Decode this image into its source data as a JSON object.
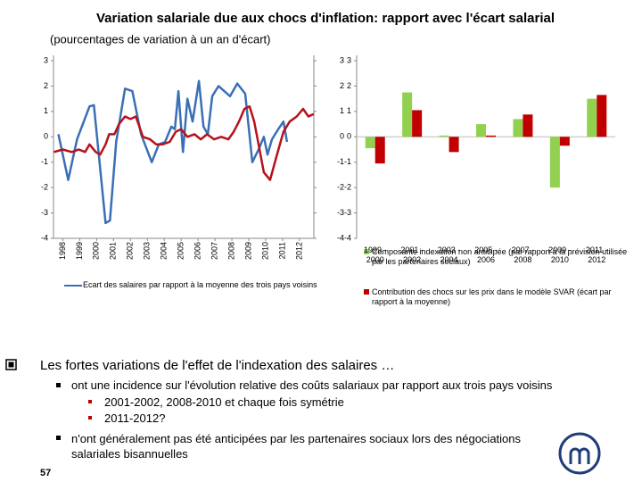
{
  "title": "Variation salariale due aux chocs d'inflation: rapport avec l'écart salarial",
  "subtitle": "(pourcentages de variation à un an d'écart)",
  "bullets": [
    {
      "text": "Les fortes variations de l'effet de l'indexation des salaires …",
      "items": [
        {
          "text": "ont une incidence sur l'évolution relative des coûts salariaux par rapport aux trois pays voisins",
          "items": [
            "2001-2002, 2008-2010 et chaque fois symétrie",
            "2011-2012?"
          ]
        },
        {
          "text": "n'ont généralement pas été anticipées par les partenaires sociaux lors des négociations salariales bisannuelles"
        }
      ]
    }
  ],
  "page_number": 57,
  "chart_data": [
    {
      "type": "line",
      "xlim": [
        1997.45,
        2012.85
      ],
      "xticks": [
        1998,
        1999,
        2000,
        2001,
        2002,
        2003,
        2004,
        2005,
        2006,
        2007,
        2008,
        2009,
        2010,
        2011,
        2012
      ],
      "ylim": [
        -4,
        3
      ],
      "yticks": [
        -4,
        -3,
        -2,
        -1,
        0,
        1,
        2,
        3
      ],
      "y2lim": [
        -4,
        3
      ],
      "y2ticks": [
        -4,
        -3,
        -2,
        -1,
        0,
        1,
        2,
        3
      ],
      "series": [
        {
          "name": "Ecart des salaires par rapport à la moyenne des trois pays voisins",
          "color": "#3a6fb5",
          "x": [
            1997.74,
            1998.32,
            1998.84,
            1999.58,
            1999.84,
            2000.53,
            2000.79,
            2001.16,
            2001.68,
            2002.11,
            2002.63,
            2003.26,
            2003.68,
            2004.05,
            2004.42,
            2004.63,
            2004.84,
            2005.11,
            2005.37,
            2005.68,
            2006.05,
            2006.32,
            2006.58,
            2006.84,
            2007.21,
            2007.89,
            2008.32,
            2008.79,
            2009.21,
            2009.58,
            2009.89,
            2010.11,
            2010.37,
            2010.74,
            2011.05,
            2011.26
          ],
          "values": [
            0.1,
            -1.7,
            -0.1,
            1.2,
            1.25,
            -3.4,
            -3.3,
            -0.2,
            1.9,
            1.8,
            0.1,
            -1.0,
            -0.3,
            -0.2,
            0.4,
            0.3,
            1.8,
            -0.6,
            1.5,
            0.6,
            2.2,
            0.4,
            0.1,
            1.6,
            2.0,
            1.6,
            2.1,
            1.7,
            -1.0,
            -0.5,
            0.0,
            -0.7,
            -0.1,
            0.3,
            0.6,
            -0.2
          ]
        },
        {
          "color": "#b5121b",
          "x": [
            1997.47,
            1998,
            1998.53,
            1998.95,
            1999.32,
            1999.58,
            1999.95,
            2000.21,
            2000.53,
            2000.74,
            2001.05,
            2001.32,
            2001.68,
            2002.0,
            2002.32,
            2002.74,
            2003.16,
            2003.53,
            2003.89,
            2004.32,
            2004.68,
            2005.0,
            2005.37,
            2005.79,
            2006.16,
            2006.53,
            2006.95,
            2007.37,
            2007.79,
            2008.11,
            2008.42,
            2008.74,
            2009.05,
            2009.32,
            2009.58,
            2009.89,
            2010.26,
            2010.63,
            2011.05,
            2011.42,
            2011.84,
            2012.21,
            2012.53,
            2012.84
          ],
          "values": [
            -0.6,
            -0.5,
            -0.6,
            -0.5,
            -0.6,
            -0.3,
            -0.6,
            -0.7,
            -0.3,
            0.1,
            0.1,
            0.5,
            0.8,
            0.7,
            0.8,
            0.0,
            -0.1,
            -0.3,
            -0.3,
            -0.2,
            0.2,
            0.3,
            0.0,
            0.1,
            -0.1,
            0.1,
            -0.1,
            0.0,
            -0.1,
            0.2,
            0.6,
            1.1,
            1.2,
            0.6,
            -0.3,
            -1.4,
            -1.7,
            -0.8,
            0.2,
            0.6,
            0.8,
            1.1,
            0.8,
            0.9
          ]
        }
      ]
    },
    {
      "type": "bar",
      "categories": [
        "1999 - 2000",
        "2001 - 2002",
        "2003 - 2004",
        "2005 - 2006",
        "2007 - 2008",
        "2009 - 2010",
        "2011 - 2012"
      ],
      "ylim": [
        -4,
        3
      ],
      "yticks": [
        -4,
        -3,
        -2,
        -1,
        0,
        1,
        2,
        3
      ],
      "series": [
        {
          "name": "Composante indexation non anticipée (par rapport à la prévision utilisée par les partenaires sociaux)",
          "color": "#92d050",
          "values": [
            -0.45,
            1.75,
            0.05,
            0.5,
            0.7,
            -2.0,
            1.5
          ]
        },
        {
          "name": "Contribution des chocs sur les prix dans le modèle SVAR (écart par rapport à la moyenne)",
          "color": "#c00000",
          "values": [
            -1.05,
            1.05,
            -0.6,
            0.05,
            0.88,
            -0.35,
            1.65
          ]
        }
      ]
    }
  ]
}
